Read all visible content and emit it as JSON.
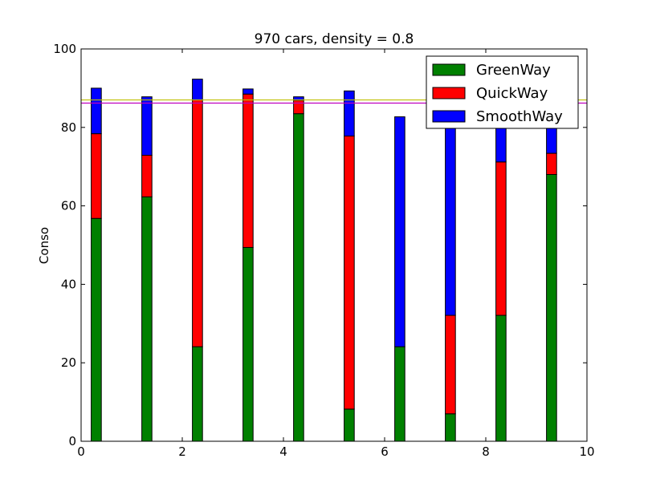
{
  "chart_data": {
    "type": "bar",
    "stacked": true,
    "title": "970 cars, density = 0.8",
    "xlabel": "",
    "ylabel": "Conso",
    "xlim": [
      0,
      10
    ],
    "ylim": [
      0,
      100
    ],
    "x_ticks": [
      "0",
      "2",
      "4",
      "6",
      "8",
      "10"
    ],
    "y_ticks": [
      "0",
      "20",
      "40",
      "60",
      "80",
      "100"
    ],
    "bar_x_centers": [
      0.3,
      1.3,
      2.3,
      3.3,
      4.3,
      5.3,
      6.3,
      7.3,
      8.3,
      9.3
    ],
    "bar_width": 0.2,
    "series": [
      {
        "name": "GreenWay",
        "color": "#008000",
        "values": [
          56.8,
          62.3,
          24.1,
          49.4,
          83.5,
          8.2,
          24.1,
          7.0,
          32.1,
          68.0
        ]
      },
      {
        "name": "QuickWay",
        "color": "#ff0000",
        "values": [
          21.6,
          10.6,
          62.9,
          39.1,
          3.4,
          69.6,
          0.0,
          25.1,
          39.1,
          5.4
        ]
      },
      {
        "name": "SmoothWay",
        "color": "#0000ff",
        "values": [
          11.6,
          14.9,
          5.3,
          1.3,
          0.9,
          11.5,
          58.6,
          57.9,
          18.8,
          16.2
        ]
      }
    ],
    "reference_lines": [
      {
        "y": 87.0,
        "color": "#bfbf00"
      },
      {
        "y": 86.2,
        "color": "#bf00bf"
      }
    ],
    "legend_position": "top-right",
    "grid": false
  }
}
